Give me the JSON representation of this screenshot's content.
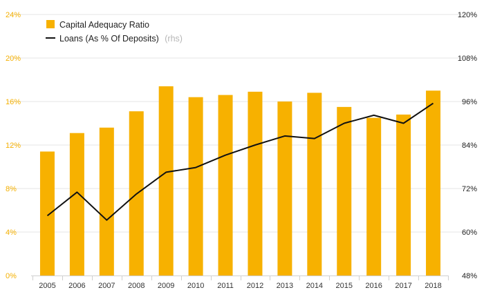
{
  "chart_data": {
    "type": "bar",
    "categories": [
      "2005",
      "2006",
      "2007",
      "2008",
      "2009",
      "2010",
      "2011",
      "2012",
      "2013",
      "2014",
      "2015",
      "2016",
      "2017",
      "2018"
    ],
    "series": [
      {
        "name": "Capital Adequacy Ratio",
        "type": "bar",
        "axis": "left",
        "color": "#f7b100",
        "values": [
          11.4,
          13.1,
          13.6,
          15.1,
          17.4,
          16.4,
          16.6,
          16.9,
          16.0,
          16.8,
          15.5,
          14.5,
          14.8,
          17.0
        ]
      },
      {
        "name": "Loans (As % Of Deposits)",
        "type": "line",
        "axis": "right",
        "color": "#111111",
        "values": [
          64.5,
          71.0,
          63.3,
          70.5,
          76.5,
          77.8,
          81.2,
          84.0,
          86.5,
          85.8,
          90.0,
          92.2,
          90.0,
          95.5
        ]
      }
    ],
    "left_axis": {
      "ylim": [
        0,
        24
      ],
      "ticks": [
        0,
        4,
        8,
        12,
        16,
        20,
        24
      ],
      "tick_labels": [
        "0%",
        "4%",
        "8%",
        "12%",
        "16%",
        "20%",
        "24%"
      ]
    },
    "right_axis": {
      "ylim": [
        48,
        120
      ],
      "ticks": [
        48,
        60,
        72,
        84,
        96,
        108,
        120
      ],
      "tick_labels": [
        "48%",
        "60%",
        "72%",
        "84%",
        "96%",
        "108%",
        "120%"
      ]
    },
    "legend": {
      "placement": "top-left",
      "items": [
        {
          "label": "Capital Adequacy Ratio",
          "note": ""
        },
        {
          "label": "Loans (As % Of Deposits)",
          "note": "(rhs)"
        }
      ]
    },
    "grid": true,
    "title": "",
    "xlabel": "",
    "ylabel": ""
  }
}
